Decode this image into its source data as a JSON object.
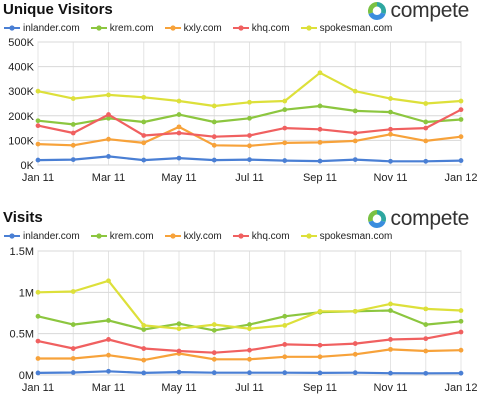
{
  "chart_data": [
    {
      "type": "line",
      "title": "Unique Visitors",
      "logo_text": "compete",
      "x": [
        "Jan 11",
        "Feb 11",
        "Mar 11",
        "Apr 11",
        "May 11",
        "Jun 11",
        "Jul 11",
        "Aug 11",
        "Sep 11",
        "Oct 11",
        "Nov 11",
        "Dec 11",
        "Jan 12"
      ],
      "x_tick_labels": [
        "Jan 11",
        "Mar 11",
        "May 11",
        "Jul 11",
        "Sep 11",
        "Nov 11",
        "Jan 12"
      ],
      "y_tick_labels": [
        "0K",
        "100K",
        "200K",
        "300K",
        "400K",
        "500K"
      ],
      "ylim": [
        0,
        500000
      ],
      "grid": "vertical and horizontal",
      "legend": "top",
      "series": [
        {
          "name": "inlander.com",
          "color": "#4a7fd4",
          "values": [
            20000,
            22000,
            35000,
            20000,
            28000,
            20000,
            22000,
            18000,
            16000,
            22000,
            15000,
            15000,
            18000
          ]
        },
        {
          "name": "krem.com",
          "color": "#8cc63f",
          "values": [
            180000,
            165000,
            190000,
            175000,
            205000,
            175000,
            190000,
            225000,
            240000,
            220000,
            215000,
            175000,
            185000
          ]
        },
        {
          "name": "kxly.com",
          "color": "#f7a23a",
          "values": [
            85000,
            80000,
            105000,
            90000,
            155000,
            80000,
            78000,
            90000,
            92000,
            98000,
            125000,
            98000,
            115000
          ]
        },
        {
          "name": "khq.com",
          "color": "#f06060",
          "values": [
            160000,
            130000,
            205000,
            120000,
            130000,
            115000,
            120000,
            150000,
            145000,
            130000,
            145000,
            150000,
            225000
          ]
        },
        {
          "name": "spokesman.com",
          "color": "#dde03a",
          "values": [
            300000,
            270000,
            285000,
            275000,
            260000,
            240000,
            255000,
            260000,
            375000,
            300000,
            270000,
            250000,
            260000
          ]
        }
      ]
    },
    {
      "type": "line",
      "title": "Visits",
      "logo_text": "compete",
      "x": [
        "Jan 11",
        "Feb 11",
        "Mar 11",
        "Apr 11",
        "May 11",
        "Jun 11",
        "Jul 11",
        "Aug 11",
        "Sep 11",
        "Oct 11",
        "Nov 11",
        "Dec 11",
        "Jan 12"
      ],
      "x_tick_labels": [
        "Jan 11",
        "Mar 11",
        "May 11",
        "Jul 11",
        "Sep 11",
        "Nov 11",
        "Jan 12"
      ],
      "y_tick_labels": [
        "0M",
        "0.5M",
        "1M",
        "1.5M"
      ],
      "ylim": [
        0,
        1500000
      ],
      "grid": "vertical and horizontal",
      "legend": "top",
      "series": [
        {
          "name": "inlander.com",
          "color": "#4a7fd4",
          "values": [
            25000,
            30000,
            45000,
            25000,
            35000,
            28000,
            28000,
            28000,
            25000,
            28000,
            22000,
            20000,
            22000
          ]
        },
        {
          "name": "krem.com",
          "color": "#8cc63f",
          "values": [
            710000,
            610000,
            660000,
            550000,
            620000,
            540000,
            610000,
            710000,
            760000,
            770000,
            780000,
            610000,
            650000
          ]
        },
        {
          "name": "kxly.com",
          "color": "#f7a23a",
          "values": [
            200000,
            200000,
            240000,
            180000,
            260000,
            190000,
            190000,
            220000,
            220000,
            250000,
            310000,
            290000,
            300000
          ]
        },
        {
          "name": "khq.com",
          "color": "#f06060",
          "values": [
            410000,
            320000,
            430000,
            320000,
            290000,
            270000,
            300000,
            370000,
            360000,
            380000,
            430000,
            440000,
            520000
          ]
        },
        {
          "name": "spokesman.com",
          "color": "#dde03a",
          "values": [
            1000000,
            1010000,
            1140000,
            600000,
            560000,
            610000,
            560000,
            600000,
            770000,
            770000,
            860000,
            800000,
            780000
          ]
        }
      ]
    }
  ]
}
